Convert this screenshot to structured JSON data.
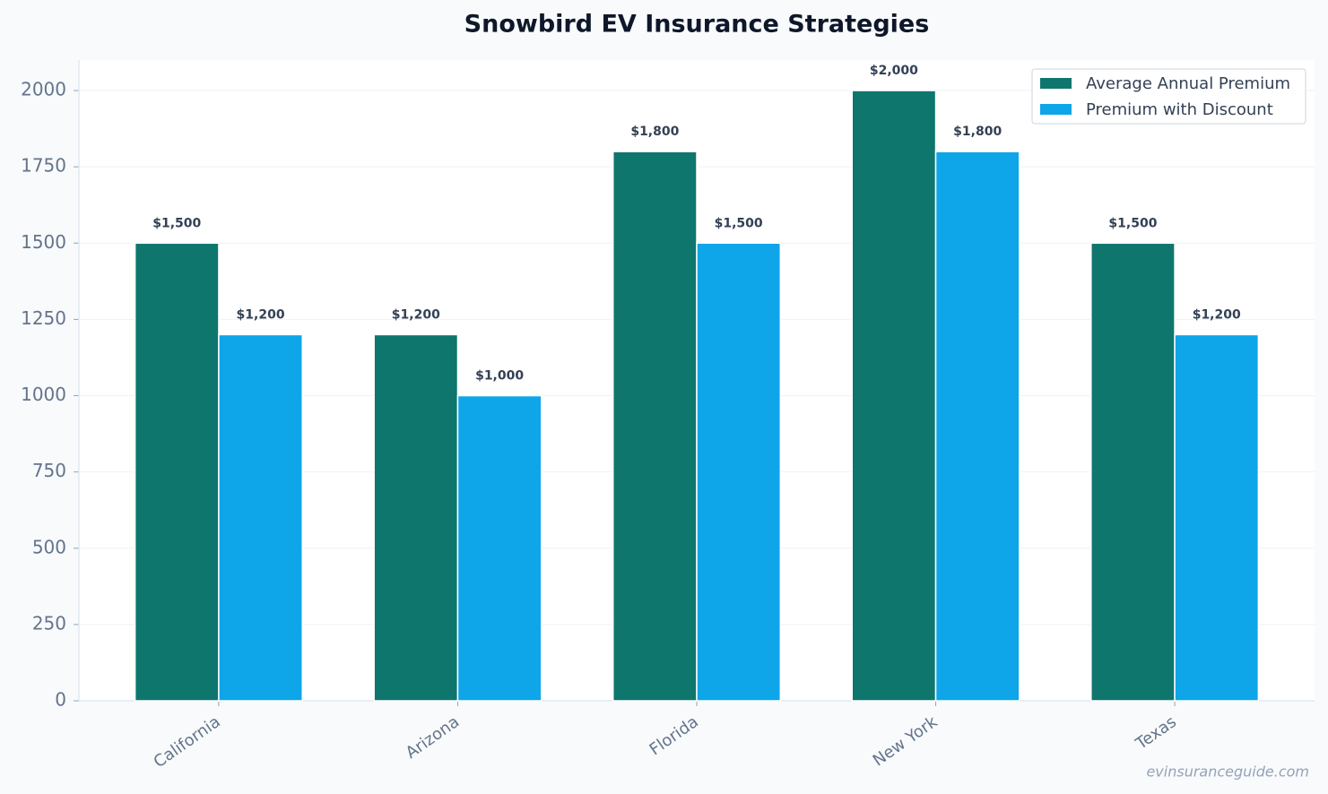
{
  "chart_data": {
    "type": "bar",
    "title": "Snowbird EV Insurance Strategies",
    "categories": [
      "California",
      "Arizona",
      "Florida",
      "New York",
      "Texas"
    ],
    "series": [
      {
        "name": "Average Annual Premium",
        "color": "#0f766e",
        "values": [
          1500,
          1200,
          1800,
          2000,
          1500
        ],
        "value_labels": [
          "$1,500",
          "$1,200",
          "$1,800",
          "$2,000",
          "$1,500"
        ]
      },
      {
        "name": "Premium with Discount",
        "color": "#0ea5e9",
        "values": [
          1200,
          1000,
          1500,
          1800,
          1200
        ],
        "value_labels": [
          "$1,200",
          "$1,000",
          "$1,500",
          "$1,800",
          "$1,200"
        ]
      }
    ],
    "ylim": [
      0,
      2100
    ],
    "yticks": [
      0,
      250,
      500,
      750,
      1000,
      1250,
      1500,
      1750,
      2000
    ],
    "grid": true,
    "legend": "upper right",
    "annotation": "evinsuranceguide.com"
  }
}
